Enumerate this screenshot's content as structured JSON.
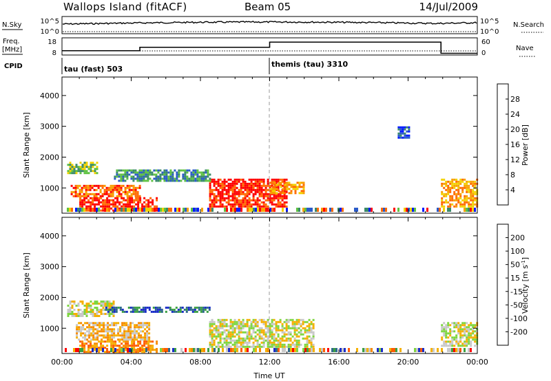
{
  "header": {
    "station": "Wallops Island (fitACF)",
    "beam": "Beam 05",
    "date": "14/Jul/2009"
  },
  "status_panels": {
    "nsky_label": "N.Sky",
    "nsearch_label": "N.Search",
    "nsky_ticks": [
      "10^5",
      "10^0"
    ],
    "nsky_right_ticks": [
      "10^5",
      "10^0"
    ],
    "freq_label": "Freq.",
    "freq_unit": "[MHz]",
    "freq_ticks": [
      "18",
      "8"
    ],
    "nave_label": "Nave",
    "nave_ticks": [
      "60",
      "0"
    ],
    "cpid_label": "CPID",
    "cpid_segments": [
      {
        "label": "tau (fast) 503",
        "start_hour": 0
      },
      {
        "label": "themis (tau) 3310",
        "start_hour": 12
      }
    ],
    "freq_steps": [
      {
        "start_hour": 0,
        "end_hour": 4.5,
        "value": 10.5
      },
      {
        "start_hour": 4.5,
        "end_hour": 12,
        "value": 12.5
      },
      {
        "start_hour": 12,
        "end_hour": 21.9,
        "value": 15.5
      },
      {
        "start_hour": 21.9,
        "end_hour": 24,
        "value": 9
      }
    ]
  },
  "chart_data": [
    {
      "type": "heatmap",
      "title": "Power",
      "xlabel": "",
      "ylabel": "Slant Range [km]",
      "xlim_hours": [
        0,
        24
      ],
      "ylim": [
        180,
        4600
      ],
      "yticks": [
        "1000",
        "2000",
        "3000",
        "4000"
      ],
      "colorbar": {
        "label": "Power [dB]",
        "ticks": [
          "4",
          "8",
          "12",
          "16",
          "20",
          "24",
          "28"
        ],
        "colors": [
          "#0018ff",
          "#2a5bc8",
          "#3a8a6a",
          "#5fc242",
          "#f2d200",
          "#f7a000",
          "#ff6a00",
          "#ff0000"
        ]
      },
      "regions": [
        {
          "x0": 0.3,
          "x1": 2.0,
          "y0": 1450,
          "y1": 1850,
          "level": 3
        },
        {
          "x0": 0.5,
          "x1": 4.5,
          "y0": 700,
          "y1": 1100,
          "level": 6
        },
        {
          "x0": 1.0,
          "x1": 5.5,
          "y0": 250,
          "y1": 700,
          "level": 7
        },
        {
          "x0": 8.5,
          "x1": 13.0,
          "y0": 400,
          "y1": 1300,
          "level": 7
        },
        {
          "x0": 12.0,
          "x1": 14.0,
          "y0": 800,
          "y1": 1200,
          "level": 5
        },
        {
          "x0": 21.9,
          "x1": 24.0,
          "y0": 400,
          "y1": 1300,
          "level": 5
        },
        {
          "x0": 3.0,
          "x1": 8.5,
          "y0": 1250,
          "y1": 1600,
          "level": 2
        },
        {
          "x0": 19.4,
          "x1": 20.0,
          "y0": 2600,
          "y1": 3000,
          "level": 1
        }
      ]
    },
    {
      "type": "heatmap",
      "title": "Velocity",
      "xlabel": "Time UT",
      "ylabel": "Slant Range [km]",
      "xlim_hours": [
        0,
        24
      ],
      "ylim": [
        180,
        4600
      ],
      "yticks": [
        "1000",
        "2000",
        "3000",
        "4000"
      ],
      "xticks": [
        "00:00",
        "04:00",
        "08:00",
        "12:00",
        "16:00",
        "20:00",
        "00:00"
      ],
      "colorbar": {
        "label": "Velocity [m s",
        "label_exponent": "-1",
        "label_close": "]",
        "ticks": [
          "200",
          "100",
          "50",
          "15",
          "-15",
          "-50",
          "-100",
          "-200"
        ],
        "colors": [
          "#1a2cc8",
          "#2f6a8a",
          "#3aa040",
          "#7ed640",
          "#c8c8c8",
          "#f5b000",
          "#f78a00",
          "#ff5a00",
          "#ff0000"
        ]
      },
      "regions": [
        {
          "x0": 0.3,
          "x1": 3.0,
          "y0": 1400,
          "y1": 1900,
          "level": 4
        },
        {
          "x0": 0.8,
          "x1": 5.0,
          "y0": 600,
          "y1": 1200,
          "level": 5
        },
        {
          "x0": 1.0,
          "x1": 5.5,
          "y0": 250,
          "y1": 600,
          "level": 6
        },
        {
          "x0": 8.5,
          "x1": 14.5,
          "y0": 400,
          "y1": 1300,
          "level": 4
        },
        {
          "x0": 21.9,
          "x1": 24.0,
          "y0": 400,
          "y1": 1200,
          "level": 4
        },
        {
          "x0": 2.5,
          "x1": 8.5,
          "y0": 1500,
          "y1": 1700,
          "level": 1
        }
      ]
    }
  ]
}
